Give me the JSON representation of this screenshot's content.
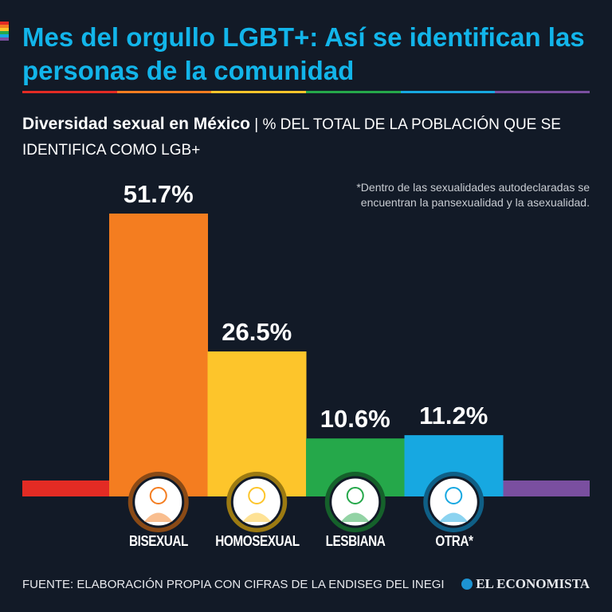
{
  "header": {
    "title": "Mes del orgullo LGBT+: Así se identifican las personas de la comunidad",
    "subtitle_bold": "Diversidad sexual en México",
    "subtitle_sep": " | ",
    "subtitle_rest": "% DEL TOTAL DE LA POBLACIÓN QUE SE IDENTIFICA COMO LGB+"
  },
  "note": "*Dentro de las sexualidades autodeclaradas se encuentran la pansexualidad y la asexualidad.",
  "colors": {
    "background": "#121a27",
    "title": "#12b5ea",
    "rainbow": [
      "#e32b24",
      "#f47d20",
      "#fdc52b",
      "#25a84a",
      "#17a8e1",
      "#7a4fa0"
    ]
  },
  "chart_data": {
    "type": "bar",
    "title": "Diversidad sexual en México",
    "ylabel": "% del total de la población que se identifica como LGB+",
    "categories": [
      "BISEXUAL",
      "HOMOSEXUAL",
      "LESBIANA",
      "OTRA*"
    ],
    "values": [
      51.7,
      26.5,
      10.6,
      11.2
    ],
    "labels": [
      "51.7%",
      "26.5%",
      "10.6%",
      "11.2%"
    ],
    "bar_colors": [
      "#f47d20",
      "#fdc52b",
      "#25a84a",
      "#17a8e1"
    ],
    "ring_colors": [
      "#8a4a16",
      "#9c7a12",
      "#15612b",
      "#0f5f86"
    ],
    "ylim": [
      0,
      55
    ],
    "grid": false
  },
  "footer": {
    "source": "FUENTE: ELABORACIÓN PROPIA CON CIFRAS DE LA ENDISEG DEL INEGI",
    "logo": "EL ECONOMISTA"
  }
}
